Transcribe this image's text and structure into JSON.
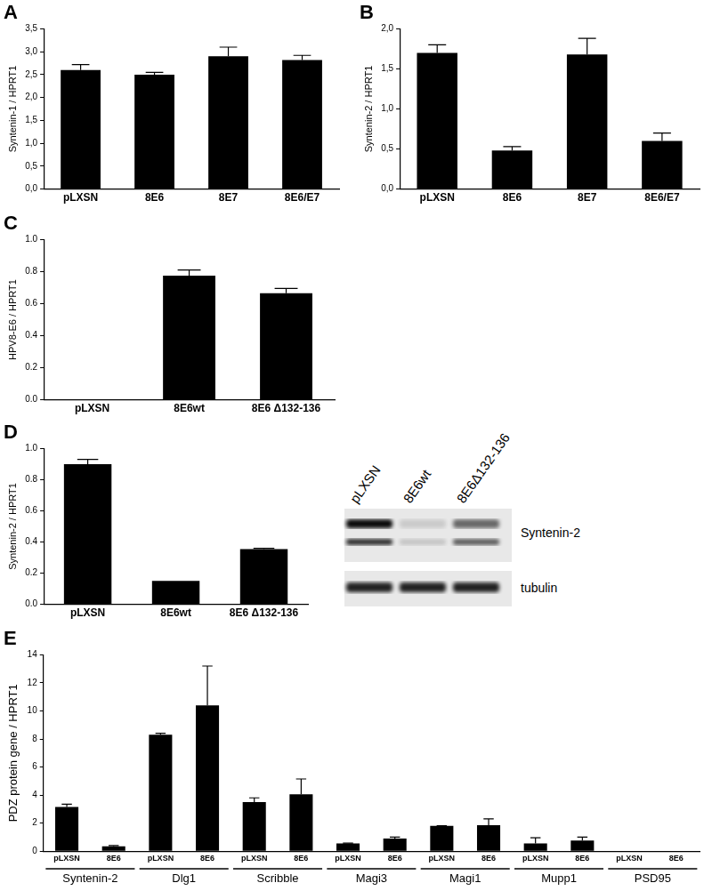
{
  "chart_data": [
    {
      "type": "bar",
      "title": "A",
      "y_label": "Syntenin-1 / HPRT1",
      "categories": [
        "pLXSN",
        "8E6",
        "8E7",
        "8E6/E7"
      ],
      "values": [
        2.6,
        2.5,
        2.9,
        2.82
      ],
      "errors": [
        0.12,
        0.05,
        0.2,
        0.1
      ],
      "color": "#000000",
      "ylim": [
        0,
        3.5
      ],
      "yticks": [
        {
          "value": 0,
          "label": "0,0"
        },
        {
          "value": 0.5,
          "label": "0,5"
        },
        {
          "value": 1,
          "label": "1,0"
        },
        {
          "value": 1.5,
          "label": "1,5"
        },
        {
          "value": 2,
          "label": "2,0"
        },
        {
          "value": 2.5,
          "label": "2,5"
        },
        {
          "value": 3,
          "label": "3,0"
        },
        {
          "value": 3.5,
          "label": "3,5"
        }
      ],
      "grid": false
    },
    {
      "type": "bar",
      "title": "B",
      "y_label": "Syntenin-2 / HPRT1",
      "categories": [
        "pLXSN",
        "8E6",
        "8E7",
        "8E6/E7"
      ],
      "values": [
        1.7,
        0.48,
        1.68,
        0.6
      ],
      "errors": [
        0.1,
        0.05,
        0.2,
        0.1
      ],
      "color": "#000000",
      "ylim": [
        0,
        2
      ],
      "yticks": [
        {
          "value": 0,
          "label": "0,0"
        },
        {
          "value": 0.5,
          "label": "0,5"
        },
        {
          "value": 1,
          "label": "1,0"
        },
        {
          "value": 1.5,
          "label": "1,5"
        },
        {
          "value": 2,
          "label": "2,0"
        }
      ],
      "grid": false
    },
    {
      "type": "bar",
      "title": "C",
      "y_label": "HPV8-E6 / HPRT1",
      "categories": [
        "pLXSN",
        "8E6wt",
        "8E6 Δ132-136"
      ],
      "values": [
        0,
        0.775,
        0.665
      ],
      "errors": [
        0,
        0.035,
        0.03
      ],
      "color": "#000000",
      "ylim": [
        0,
        1
      ],
      "yticks": [
        {
          "value": 0,
          "label": "0.0"
        },
        {
          "value": 0.2,
          "label": "0.2"
        },
        {
          "value": 0.4,
          "label": "0.4"
        },
        {
          "value": 0.6,
          "label": "0.6"
        },
        {
          "value": 0.8,
          "label": "0.8"
        },
        {
          "value": 1,
          "label": "1.0"
        }
      ],
      "grid": false
    },
    {
      "type": "bar",
      "title": "D",
      "y_label": "Syntenin-2 / HPRT1",
      "categories": [
        "pLXSN",
        "8E6wt",
        "8E6 Δ132-136"
      ],
      "values": [
        0.9,
        0.15,
        0.355
      ],
      "errors": [
        0.03,
        0,
        0.005
      ],
      "color": "#000000",
      "ylim": [
        0,
        1
      ],
      "yticks": [
        {
          "value": 0,
          "label": "0.0"
        },
        {
          "value": 0.2,
          "label": "0.2"
        },
        {
          "value": 0.4,
          "label": "0.4"
        },
        {
          "value": 0.6,
          "label": "0.6"
        },
        {
          "value": 0.8,
          "label": "0.8"
        },
        {
          "value": 1,
          "label": "1.0"
        }
      ],
      "grid": false
    },
    {
      "type": "bar",
      "title": "E",
      "y_label": "PDZ protein gene / HPRT1",
      "categories": [
        "pLXSN",
        "8E6",
        "pLXSN",
        "8E6",
        "pLXSN",
        "8E6",
        "pLXSN",
        "8E6",
        "pLXSN",
        "8E6",
        "pLXSN",
        "8E6",
        "pLXSN",
        "8E6"
      ],
      "annotations": [
        "Syntenin-2",
        "Dlg1",
        "Scribble",
        "Magi3",
        "Magi1",
        "Mupp1",
        "PSD95"
      ],
      "values": [
        3.15,
        0.35,
        8.3,
        10.4,
        3.5,
        4.05,
        0.55,
        0.9,
        1.8,
        1.85,
        0.55,
        0.75,
        0.03,
        0.03
      ],
      "errors": [
        0.2,
        0.05,
        0.1,
        2.8,
        0.3,
        1.1,
        0.02,
        0.1,
        0.02,
        0.45,
        0.4,
        0.25,
        0,
        0
      ],
      "color": "#000000",
      "ylim": [
        0,
        14
      ],
      "yticks": [
        0,
        2,
        4,
        6,
        8,
        10,
        12,
        14
      ],
      "grid": false
    }
  ],
  "blot": {
    "lanes": [
      "pLXSN",
      "8E6wt",
      "8E6Δ132-136"
    ],
    "rows": [
      "Syntenin-2",
      "tubulin"
    ]
  }
}
